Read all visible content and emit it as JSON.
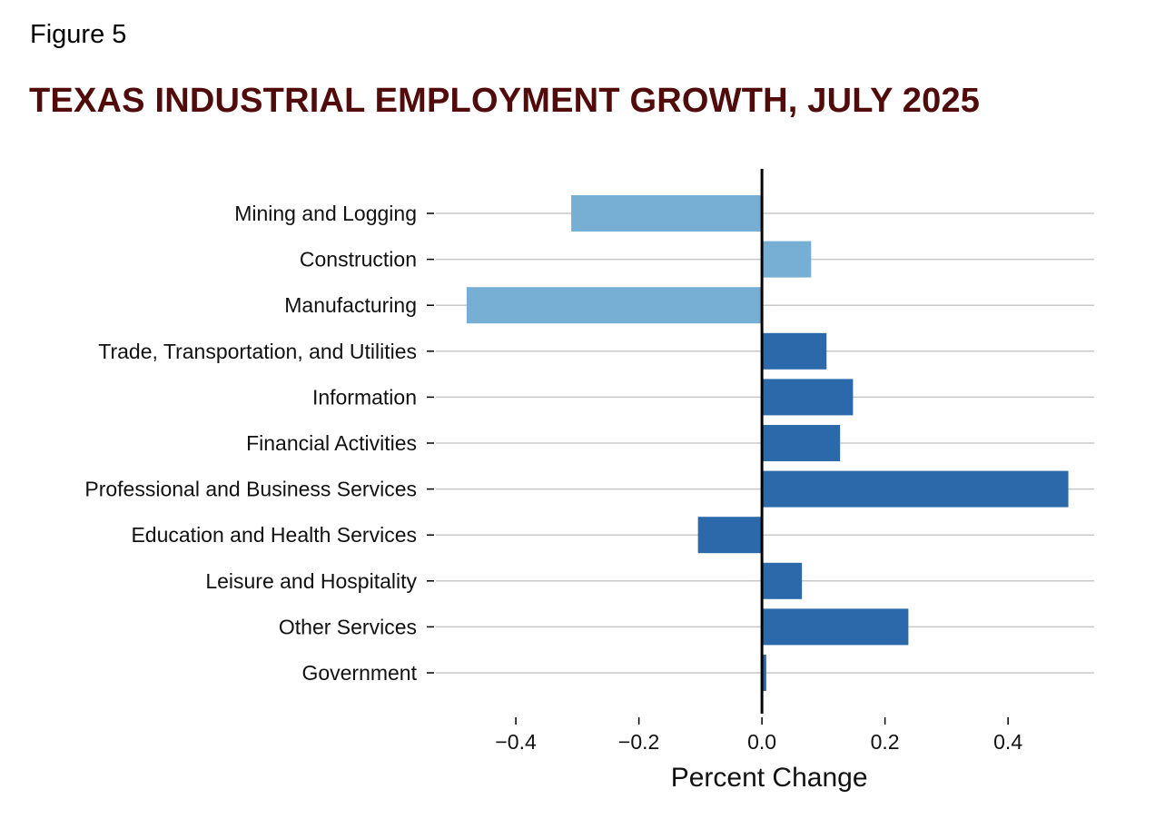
{
  "figure_label": "Figure 5",
  "colors": {
    "title": "#520b0b",
    "goods_bar": "#76afd3",
    "services_bar": "#2b69aa",
    "gridline": "#c8c8c8",
    "zero_line": "#000000"
  },
  "chart_data": {
    "type": "bar",
    "orientation": "horizontal",
    "title": "TEXAS INDUSTRIAL EMPLOYMENT GROWTH, JULY 2025",
    "xlabel": "Percent Change",
    "ylabel": "",
    "xlim": [
      -0.53,
      0.54
    ],
    "xticks": [
      -0.4,
      -0.2,
      0.0,
      0.2,
      0.4
    ],
    "xtick_labels": [
      "−0.4",
      "−0.2",
      "0.0",
      "0.2",
      "0.4"
    ],
    "grid": "horizontal",
    "categories": [
      "Mining and Logging",
      "Construction",
      "Manufacturing",
      "Trade, Transportation, and Utilities",
      "Information",
      "Financial Activities",
      "Professional and Business Services",
      "Education and Health Services",
      "Leisure and Hospitality",
      "Other Services",
      "Government"
    ],
    "values": [
      -0.31,
      0.08,
      -0.48,
      0.105,
      0.148,
      0.127,
      0.498,
      -0.104,
      0.065,
      0.238,
      0.007
    ],
    "groups": [
      "goods",
      "goods",
      "goods",
      "services",
      "services",
      "services",
      "services",
      "services",
      "services",
      "services",
      "services"
    ]
  }
}
